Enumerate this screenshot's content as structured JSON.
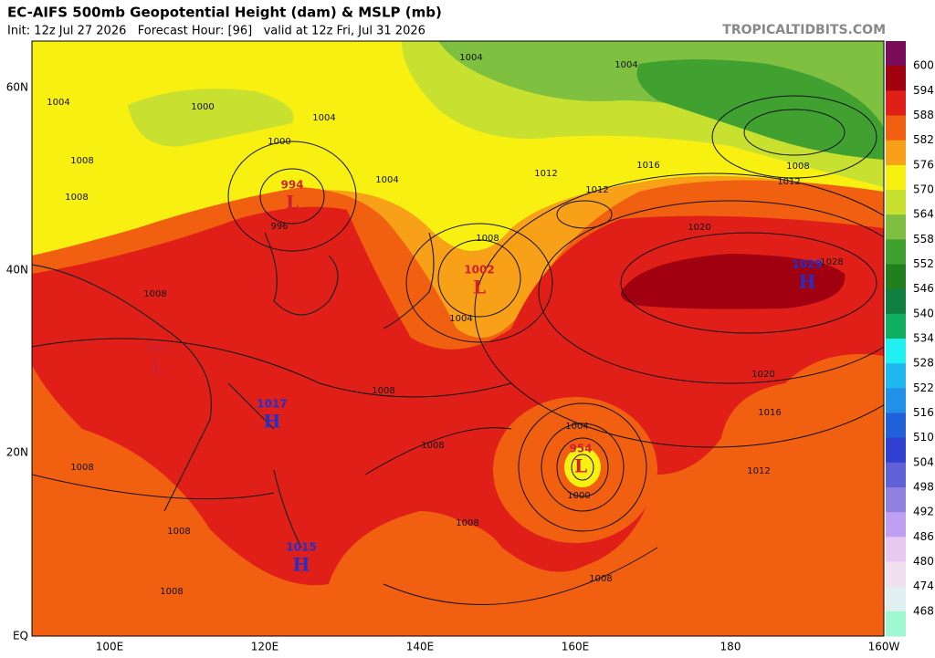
{
  "header": {
    "title": "EC-AIFS 500mb Geopotential Height (dam) & MSLP (mb)",
    "subtitle": "Init: 12z Jul 27 2026   Forecast Hour: [96]   valid at 12z Fri, Jul 31 2026",
    "watermark": "TROPICALTIDBITS.COM"
  },
  "axes": {
    "lat_labels": [
      "60N",
      "40N",
      "20N",
      "EQ"
    ],
    "lon_labels": [
      "100E",
      "120E",
      "140E",
      "160E",
      "180",
      "160W"
    ]
  },
  "colorbar": {
    "labels": [
      600,
      594,
      588,
      582,
      576,
      570,
      564,
      558,
      552,
      546,
      540,
      534,
      528,
      522,
      516,
      510,
      504,
      498,
      492,
      486,
      480,
      474,
      468
    ],
    "colors": [
      "#7a0c5a",
      "#a00010",
      "#e02018",
      "#f06010",
      "#f8a018",
      "#f8f010",
      "#c8e030",
      "#80c040",
      "#40a030",
      "#208020",
      "#108040",
      "#10b060",
      "#20f0f0",
      "#20b8f0",
      "#2090e8",
      "#2060d8",
      "#3040d0",
      "#6060d8",
      "#9080e0",
      "#c0a0f0",
      "#e8c8f0",
      "#f0e0f0",
      "#e0f0f0",
      "#a0f8d0"
    ]
  },
  "centers": [
    {
      "value": 994,
      "letter": "L"
    },
    {
      "value": 1002,
      "letter": "L"
    },
    {
      "value": 1029,
      "letter": "H"
    },
    {
      "value": 1017,
      "letter": "H"
    },
    {
      "value": 1015,
      "letter": "H"
    },
    {
      "value": 999,
      "letter": "L"
    },
    {
      "value": 954,
      "letter": "L"
    }
  ],
  "contour_labels": [
    1004,
    1004,
    1004,
    1000,
    1004,
    1008,
    1008,
    1004,
    1008,
    1012,
    1012,
    1016,
    1008,
    1012,
    1008,
    1004,
    1000,
    996,
    1008,
    1020,
    1028,
    1020,
    1016,
    1012,
    1008,
    1004,
    1000,
    1008,
    1008,
    1008,
    1008,
    1008
  ]
}
